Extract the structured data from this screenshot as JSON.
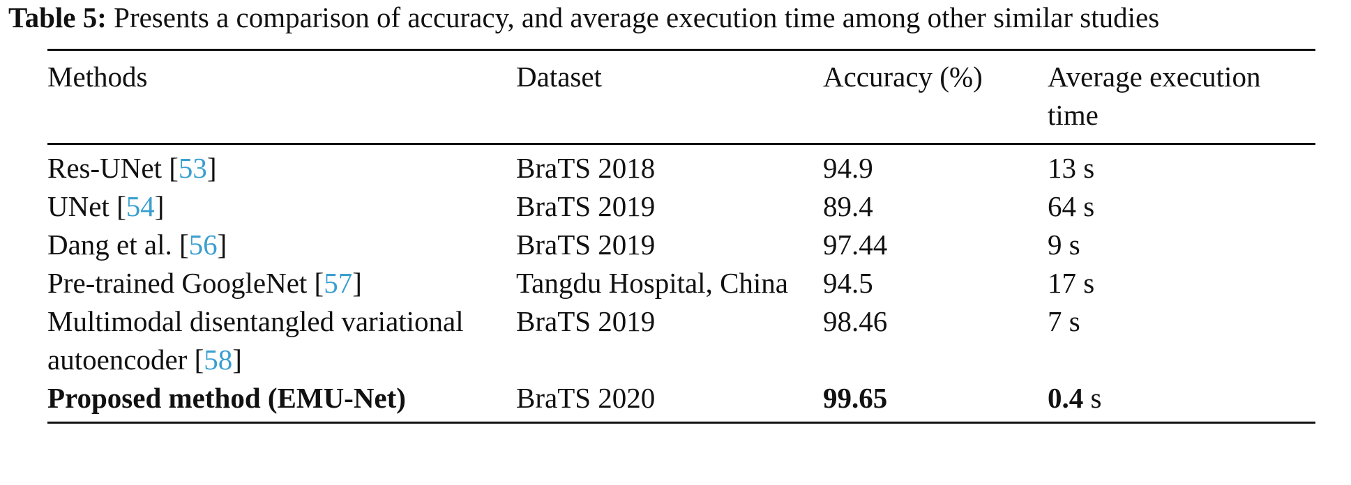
{
  "caption": {
    "label": "Table 5:",
    "text": "Presents a comparison of accuracy, and average execution time among other similar studies"
  },
  "table": {
    "headers": [
      "Methods",
      "Dataset",
      "Accuracy (%)",
      "Average execution time"
    ],
    "rows": [
      {
        "method": "Res-UNet",
        "ref": "53",
        "dataset": "BraTS 2018",
        "accuracy": "94.9",
        "time": "13",
        "unit": "s"
      },
      {
        "method": "UNet",
        "ref": "54",
        "dataset": "BraTS 2019",
        "accuracy": "89.4",
        "time": "64",
        "unit": "s"
      },
      {
        "method": "Dang et al.",
        "ref": "56",
        "dataset": "BraTS 2019",
        "accuracy": "97.44",
        "time": "9",
        "unit": "s"
      },
      {
        "method": "Pre-trained GoogleNet",
        "ref": "57",
        "dataset": "Tangdu Hospital, China",
        "accuracy": "94.5",
        "time": "17",
        "unit": "s"
      },
      {
        "method": "Multimodal disentangled variational autoencoder",
        "ref": "58",
        "dataset": "BraTS 2019",
        "accuracy": "98.46",
        "time": "7",
        "unit": "s"
      },
      {
        "method": "Proposed method (EMU-Net)",
        "ref": "",
        "dataset": "BraTS 2020",
        "accuracy": "99.65",
        "time": "0.4",
        "unit": "s",
        "bold": true
      }
    ]
  }
}
